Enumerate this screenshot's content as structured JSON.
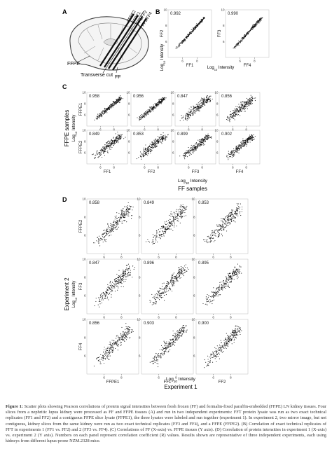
{
  "panel_letters": {
    "a": "A",
    "b": "B",
    "c": "C",
    "d": "D"
  },
  "panel_a": {
    "strip_labels": [
      "FFPE2",
      "FFPE1",
      "FF1/FF2",
      "FF3/FF4"
    ],
    "ffpe_label": "FFPE",
    "ff_label": "FF",
    "transverse_cut_label": "Transverse cut"
  },
  "panel_b": {
    "ylabel_text": "Log",
    "ylabel_sub": "10",
    "ylabel_tail": " Intensity",
    "xlabel_text": "Log",
    "xlabel_sub": "10",
    "xlabel_tail": " Intensity"
  },
  "panel_c": {
    "y_axis_title": "FFPE samples",
    "ylabel_text": "Log",
    "ylabel_sub": "10",
    "ylabel_tail": " Intensity",
    "xlabel_text": "Log",
    "xlabel_sub": "10",
    "xlabel_tail": " Intensity",
    "x_axis_title": "FF samples"
  },
  "panel_d": {
    "y_axis_title": "Experiment 2",
    "ylabel_text": "Log",
    "ylabel_sub": "10",
    "ylabel_tail": " Intensity",
    "xlabel_text": "Log",
    "xlabel_sub": "10",
    "xlabel_tail": " Intensity",
    "x_axis_title": "Experiment 1"
  },
  "chart_data": [
    {
      "panel": "B",
      "type": "scatter",
      "xlim": [
        4,
        10
      ],
      "ylim": [
        4,
        10
      ],
      "xticks": [
        6,
        8
      ],
      "yticks": [
        6,
        8,
        10
      ],
      "subplots": [
        {
          "x_label": "FF1",
          "y_label": "FF2",
          "r": "0.992"
        },
        {
          "x_label": "FF4",
          "y_label": "FF3",
          "r": "0.990"
        }
      ]
    },
    {
      "panel": "C",
      "type": "scatter",
      "xlim": [
        4,
        10
      ],
      "ylim": [
        4,
        10
      ],
      "xticks": [
        6,
        8
      ],
      "yticks": [
        6,
        8,
        10
      ],
      "row_labels": [
        "FFPE1",
        "FFPE2"
      ],
      "col_labels": [
        "FF1",
        "FF2",
        "FF3",
        "FF4"
      ],
      "r_values": [
        [
          "0.958",
          "0.956",
          "0.847",
          "0.856"
        ],
        [
          "0.849",
          "0.853",
          "0.899",
          "0.902"
        ]
      ]
    },
    {
      "panel": "D",
      "type": "scatter",
      "xlim": [
        4,
        10
      ],
      "ylim": [
        4,
        10
      ],
      "xticks": [
        6,
        8
      ],
      "yticks": [
        6,
        8,
        10
      ],
      "row_labels": [
        "FFPE2",
        "FF3",
        "FF4"
      ],
      "col_labels": [
        "FFPE1",
        "FF1",
        "FF2"
      ],
      "r_values": [
        [
          "0.858",
          "0.849",
          "0.853"
        ],
        [
          "0.847",
          "0.896",
          "0.895"
        ],
        [
          "0.856",
          "0.903",
          "0.900"
        ]
      ]
    }
  ],
  "caption": {
    "lead": "Figure 1:",
    "text": "Scatter plots showing Pearson correlations of protein signal intensities between fresh frozen (FF) and formalin-fixed paraffin-embedded (FFPE) LN kidney tissues. Four slices from a nephritic lupus kidney were processed as FF and FFPE tissues (A) and run in two independent experiments: FFT protein lysate was run as two exact technical replicates (FF1 and FF2) and a contiguous FFPE slice lysate (FFPE1), the three lysates were labeled and run together (experiment 1). In experiment 2, two mirror image, but not contiguous, kidney slices from the same kidney were run as two exact technical replicates (FF3 and FF4), and a FFPE (FFPE2). (B) Correlation of exact technical replicates of FFT in experiments 1 (FF1 vs. FF2) and 2 (FF3 vs. FF4). (C) Correlations of FF (X-axis) vs. FFPE tissues (Y axis). (D) Correlation of protein intensities in experiment 1 (X-axis) vs. experiment 2 (Y axis). Numbers on each panel represent correlation coefficient (R) values. Results shown are representative of three independent experiments, each using kidneys from different lupus-prone NZM.2328 mice."
  }
}
